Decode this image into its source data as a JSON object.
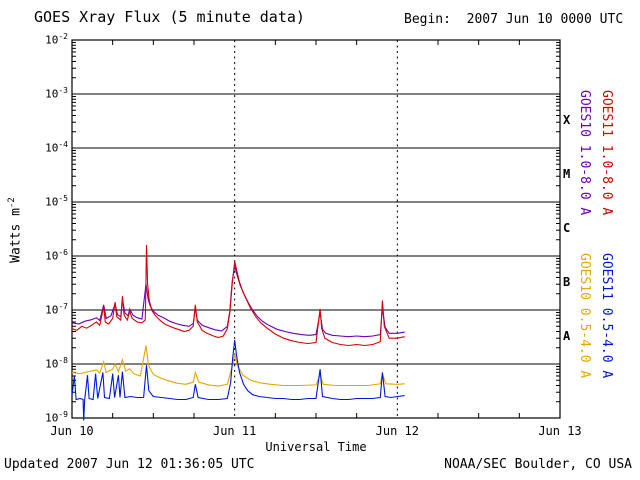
{
  "header": {
    "title": "GOES Xray Flux (5 minute data)",
    "begin": "Begin:  2007 Jun 10 0000 UTC"
  },
  "footer": {
    "updated": "Updated 2007 Jun 12 01:36:05 UTC",
    "credit": "NOAA/SEC Boulder, CO USA"
  },
  "axes": {
    "y_title_base": "Watts m",
    "y_title_exp": "-2",
    "x_title": "Universal Time",
    "y_tick_exponents": [
      -2,
      -3,
      -4,
      -5,
      -6,
      -7,
      -8,
      -9
    ],
    "x_tick_labels": [
      "Jun 10",
      "Jun 11",
      "Jun 12",
      "Jun 13"
    ],
    "flare_classes": [
      "X",
      "M",
      "C",
      "B",
      "A"
    ]
  },
  "legend": {
    "items": [
      {
        "label": "GOES10 1.0-8.0 A",
        "color": "#6a00b8"
      },
      {
        "label": "GOES11 1.0-8.0 A",
        "color": "#d80000"
      },
      {
        "label": "GOES10 0.5-4.0 A",
        "color": "#e6a800"
      },
      {
        "label": "GOES11 0.5-4.0 A",
        "color": "#0018d8"
      }
    ]
  },
  "chart_data": {
    "type": "line",
    "title": "GOES Xray Flux (5 minute data)",
    "xlabel": "Universal Time",
    "ylabel": "Watts m^-2",
    "yscale": "log",
    "ylim": [
      1e-09,
      0.01
    ],
    "x_range_days": [
      0,
      3
    ],
    "x_start": "2007 Jun 10 0000 UTC",
    "x_tick_labels": [
      "Jun 10",
      "Jun 11",
      "Jun 12",
      "Jun 13"
    ],
    "grid": "horizontal solid lines each decade; vertical dashed lines at day boundaries Jun 11 and Jun 12",
    "legend_position": "right, rotated vertical labels",
    "flare_class_bands": {
      "A": 1e-08,
      "B": 1e-07,
      "C": 1e-06,
      "M": 1e-05,
      "X": 0.0001
    },
    "series": [
      {
        "name": "GOES10 0.5-4.0 A",
        "key": "goes10-short",
        "color": "#e6a800",
        "points": [
          [
            0.0,
            7e-09
          ],
          [
            0.05,
            6.6e-09
          ],
          [
            0.1,
            7.2e-09
          ],
          [
            0.15,
            7.8e-09
          ],
          [
            0.17,
            6.8e-09
          ],
          [
            0.195,
            1.1e-08
          ],
          [
            0.21,
            7e-09
          ],
          [
            0.25,
            8e-09
          ],
          [
            0.265,
            1e-08
          ],
          [
            0.285,
            7.2e-09
          ],
          [
            0.31,
            1.2e-08
          ],
          [
            0.33,
            7.4e-09
          ],
          [
            0.355,
            8.2e-09
          ],
          [
            0.38,
            6.6e-09
          ],
          [
            0.42,
            6e-09
          ],
          [
            0.455,
            2.2e-08
          ],
          [
            0.47,
            9.5e-09
          ],
          [
            0.5,
            6.4e-09
          ],
          [
            0.55,
            5.4e-09
          ],
          [
            0.6,
            4.8e-09
          ],
          [
            0.65,
            4.4e-09
          ],
          [
            0.7,
            4.2e-09
          ],
          [
            0.745,
            4.6e-09
          ],
          [
            0.758,
            7e-09
          ],
          [
            0.78,
            4.6e-09
          ],
          [
            0.84,
            4.1e-09
          ],
          [
            0.9,
            3.9e-09
          ],
          [
            0.955,
            4.2e-09
          ],
          [
            0.985,
            9e-09
          ],
          [
            1.0,
            1.5e-08
          ],
          [
            1.02,
            9e-09
          ],
          [
            1.05,
            6.2e-09
          ],
          [
            1.1,
            5e-09
          ],
          [
            1.15,
            4.5e-09
          ],
          [
            1.22,
            4.2e-09
          ],
          [
            1.3,
            4e-09
          ],
          [
            1.4,
            4e-09
          ],
          [
            1.5,
            4.1e-09
          ],
          [
            1.525,
            6.2e-09
          ],
          [
            1.545,
            4.2e-09
          ],
          [
            1.62,
            4e-09
          ],
          [
            1.72,
            4e-09
          ],
          [
            1.82,
            4e-09
          ],
          [
            1.895,
            4.3e-09
          ],
          [
            1.908,
            6.5e-09
          ],
          [
            1.93,
            4.3e-09
          ],
          [
            2.0,
            4.2e-09
          ],
          [
            2.045,
            4.3e-09
          ]
        ]
      },
      {
        "name": "GOES11 0.5-4.0 A",
        "key": "goes11-short",
        "color": "#0018d8",
        "points": [
          [
            0.0,
            2.6e-09
          ],
          [
            0.015,
            6e-09
          ],
          [
            0.025,
            2.2e-09
          ],
          [
            0.05,
            2.3e-09
          ],
          [
            0.068,
            2.2e-09
          ],
          [
            0.072,
            9e-10
          ],
          [
            0.078,
            2.2e-09
          ],
          [
            0.095,
            6.2e-09
          ],
          [
            0.105,
            2.3e-09
          ],
          [
            0.13,
            2.2e-09
          ],
          [
            0.145,
            6.6e-09
          ],
          [
            0.158,
            2.3e-09
          ],
          [
            0.19,
            7e-09
          ],
          [
            0.2,
            2.4e-09
          ],
          [
            0.23,
            2.3e-09
          ],
          [
            0.25,
            6.6e-09
          ],
          [
            0.262,
            2.4e-09
          ],
          [
            0.285,
            6.2e-09
          ],
          [
            0.295,
            2.4e-09
          ],
          [
            0.31,
            7.2e-09
          ],
          [
            0.325,
            2.4e-09
          ],
          [
            0.36,
            2.5e-09
          ],
          [
            0.4,
            2.4e-09
          ],
          [
            0.44,
            2.4e-09
          ],
          [
            0.458,
            9.5e-09
          ],
          [
            0.472,
            3.2e-09
          ],
          [
            0.5,
            2.5e-09
          ],
          [
            0.55,
            2.4e-09
          ],
          [
            0.6,
            2.3e-09
          ],
          [
            0.65,
            2.2e-09
          ],
          [
            0.7,
            2.2e-09
          ],
          [
            0.745,
            2.4e-09
          ],
          [
            0.758,
            4.2e-09
          ],
          [
            0.775,
            2.4e-09
          ],
          [
            0.84,
            2.2e-09
          ],
          [
            0.9,
            2.2e-09
          ],
          [
            0.955,
            2.3e-09
          ],
          [
            0.975,
            4.5e-09
          ],
          [
            0.988,
            1.3e-08
          ],
          [
            1.0,
            2.8e-08
          ],
          [
            1.012,
            1.4e-08
          ],
          [
            1.03,
            7e-09
          ],
          [
            1.055,
            4.2e-09
          ],
          [
            1.08,
            3.2e-09
          ],
          [
            1.11,
            2.7e-09
          ],
          [
            1.15,
            2.5e-09
          ],
          [
            1.2,
            2.4e-09
          ],
          [
            1.25,
            2.3e-09
          ],
          [
            1.3,
            2.3e-09
          ],
          [
            1.35,
            2.2e-09
          ],
          [
            1.4,
            2.2e-09
          ],
          [
            1.45,
            2.3e-09
          ],
          [
            1.5,
            2.3e-09
          ],
          [
            1.525,
            8e-09
          ],
          [
            1.54,
            2.5e-09
          ],
          [
            1.6,
            2.3e-09
          ],
          [
            1.65,
            2.2e-09
          ],
          [
            1.7,
            2.2e-09
          ],
          [
            1.75,
            2.3e-09
          ],
          [
            1.8,
            2.3e-09
          ],
          [
            1.85,
            2.3e-09
          ],
          [
            1.895,
            2.4e-09
          ],
          [
            1.908,
            7e-09
          ],
          [
            1.925,
            2.5e-09
          ],
          [
            1.96,
            2.4e-09
          ],
          [
            2.0,
            2.5e-09
          ],
          [
            2.045,
            2.6e-09
          ]
        ]
      },
      {
        "name": "GOES10 1.0-8.0 A",
        "key": "goes10-long",
        "color": "#6a00b8",
        "points": [
          [
            0.0,
            5.8e-08
          ],
          [
            0.04,
            5.5e-08
          ],
          [
            0.08,
            6.2e-08
          ],
          [
            0.12,
            6.6e-08
          ],
          [
            0.15,
            7.2e-08
          ],
          [
            0.17,
            6.4e-08
          ],
          [
            0.195,
            1.25e-07
          ],
          [
            0.21,
            7e-08
          ],
          [
            0.24,
            7.8e-08
          ],
          [
            0.265,
            1.3e-07
          ],
          [
            0.28,
            8.2e-08
          ],
          [
            0.3,
            7.5e-08
          ],
          [
            0.31,
            1.6e-07
          ],
          [
            0.325,
            8.8e-08
          ],
          [
            0.345,
            7.8e-08
          ],
          [
            0.355,
            1.05e-07
          ],
          [
            0.375,
            8e-08
          ],
          [
            0.4,
            7.2e-08
          ],
          [
            0.43,
            6.8e-08
          ],
          [
            0.455,
            3e-07
          ],
          [
            0.468,
            1.6e-07
          ],
          [
            0.48,
            1.2e-07
          ],
          [
            0.5,
            9.5e-08
          ],
          [
            0.53,
            8e-08
          ],
          [
            0.57,
            7e-08
          ],
          [
            0.6,
            6.2e-08
          ],
          [
            0.64,
            5.6e-08
          ],
          [
            0.68,
            5.2e-08
          ],
          [
            0.72,
            5e-08
          ],
          [
            0.745,
            5.6e-08
          ],
          [
            0.758,
            1.1e-07
          ],
          [
            0.77,
            6.5e-08
          ],
          [
            0.8,
            5.2e-08
          ],
          [
            0.84,
            4.7e-08
          ],
          [
            0.88,
            4.3e-08
          ],
          [
            0.92,
            4.1e-08
          ],
          [
            0.955,
            5e-08
          ],
          [
            0.97,
            9.5e-08
          ],
          [
            0.985,
            3.4e-07
          ],
          [
            1.0,
            6.5e-07
          ],
          [
            1.015,
            4.4e-07
          ],
          [
            1.035,
            2.8e-07
          ],
          [
            1.06,
            1.9e-07
          ],
          [
            1.085,
            1.35e-07
          ],
          [
            1.11,
            1e-07
          ],
          [
            1.14,
            7.6e-08
          ],
          [
            1.17,
            6.2e-08
          ],
          [
            1.21,
            5.2e-08
          ],
          [
            1.26,
            4.4e-08
          ],
          [
            1.31,
            4e-08
          ],
          [
            1.36,
            3.7e-08
          ],
          [
            1.41,
            3.5e-08
          ],
          [
            1.46,
            3.4e-08
          ],
          [
            1.5,
            3.5e-08
          ],
          [
            1.525,
            9e-08
          ],
          [
            1.54,
            4.4e-08
          ],
          [
            1.56,
            3.7e-08
          ],
          [
            1.6,
            3.4e-08
          ],
          [
            1.65,
            3.3e-08
          ],
          [
            1.7,
            3.2e-08
          ],
          [
            1.75,
            3.3e-08
          ],
          [
            1.8,
            3.2e-08
          ],
          [
            1.85,
            3.3e-08
          ],
          [
            1.895,
            3.5e-08
          ],
          [
            1.908,
            1.1e-07
          ],
          [
            1.925,
            4.8e-08
          ],
          [
            1.95,
            3.7e-08
          ],
          [
            2.0,
            3.7e-08
          ],
          [
            2.045,
            3.9e-08
          ]
        ]
      },
      {
        "name": "GOES11 1.0-8.0 A",
        "key": "goes11-long",
        "color": "#d80000",
        "points": [
          [
            0.0,
            4.5e-08
          ],
          [
            0.03,
            4.2e-08
          ],
          [
            0.06,
            5e-08
          ],
          [
            0.09,
            4.6e-08
          ],
          [
            0.12,
            5.2e-08
          ],
          [
            0.15,
            6e-08
          ],
          [
            0.17,
            5.2e-08
          ],
          [
            0.195,
            1.15e-07
          ],
          [
            0.205,
            6e-08
          ],
          [
            0.225,
            5.5e-08
          ],
          [
            0.25,
            7e-08
          ],
          [
            0.265,
            1.4e-07
          ],
          [
            0.275,
            7.5e-08
          ],
          [
            0.3,
            6.5e-08
          ],
          [
            0.31,
            1.8e-07
          ],
          [
            0.32,
            8e-08
          ],
          [
            0.34,
            6.5e-08
          ],
          [
            0.355,
            9.5e-08
          ],
          [
            0.37,
            7e-08
          ],
          [
            0.4,
            6e-08
          ],
          [
            0.43,
            5.8e-08
          ],
          [
            0.45,
            6.5e-08
          ],
          [
            0.452,
            1e-07
          ],
          [
            0.458,
            1.6e-06
          ],
          [
            0.465,
            3e-07
          ],
          [
            0.475,
            1.5e-07
          ],
          [
            0.49,
            1e-07
          ],
          [
            0.51,
            8e-08
          ],
          [
            0.54,
            6.5e-08
          ],
          [
            0.57,
            5.5e-08
          ],
          [
            0.6,
            5e-08
          ],
          [
            0.63,
            4.6e-08
          ],
          [
            0.66,
            4.3e-08
          ],
          [
            0.69,
            4e-08
          ],
          [
            0.72,
            4.2e-08
          ],
          [
            0.745,
            5e-08
          ],
          [
            0.758,
            1.25e-07
          ],
          [
            0.77,
            6e-08
          ],
          [
            0.8,
            4.2e-08
          ],
          [
            0.83,
            3.7e-08
          ],
          [
            0.87,
            3.3e-08
          ],
          [
            0.9,
            3.1e-08
          ],
          [
            0.93,
            3.3e-08
          ],
          [
            0.955,
            4.5e-08
          ],
          [
            0.97,
            9e-08
          ],
          [
            0.985,
            3e-07
          ],
          [
            1.0,
            8e-07
          ],
          [
            1.012,
            5.5e-07
          ],
          [
            1.03,
            3.3e-07
          ],
          [
            1.05,
            2.2e-07
          ],
          [
            1.075,
            1.5e-07
          ],
          [
            1.1,
            1.05e-07
          ],
          [
            1.13,
            7.5e-08
          ],
          [
            1.16,
            5.8e-08
          ],
          [
            1.2,
            4.6e-08
          ],
          [
            1.25,
            3.6e-08
          ],
          [
            1.3,
            3e-08
          ],
          [
            1.35,
            2.7e-08
          ],
          [
            1.4,
            2.5e-08
          ],
          [
            1.45,
            2.4e-08
          ],
          [
            1.5,
            2.5e-08
          ],
          [
            1.525,
            1.05e-07
          ],
          [
            1.535,
            4.5e-08
          ],
          [
            1.555,
            3e-08
          ],
          [
            1.6,
            2.5e-08
          ],
          [
            1.65,
            2.3e-08
          ],
          [
            1.7,
            2.2e-08
          ],
          [
            1.75,
            2.3e-08
          ],
          [
            1.8,
            2.2e-08
          ],
          [
            1.85,
            2.3e-08
          ],
          [
            1.895,
            2.6e-08
          ],
          [
            1.908,
            1.5e-07
          ],
          [
            1.92,
            5e-08
          ],
          [
            1.95,
            3e-08
          ],
          [
            2.0,
            3e-08
          ],
          [
            2.045,
            3.2e-08
          ]
        ]
      }
    ]
  }
}
